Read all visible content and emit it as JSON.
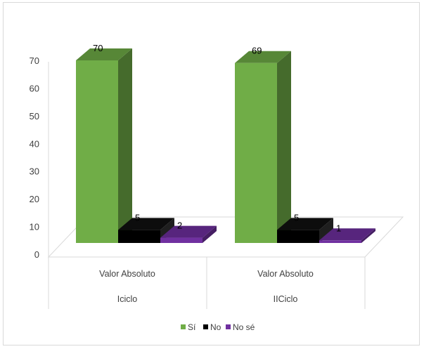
{
  "chart_data": {
    "type": "bar",
    "subtype": "3d-clustered-column",
    "groups": [
      {
        "label": "Valor Absoluto",
        "sublabel": "Iciclo"
      },
      {
        "label": "Valor Absoluto",
        "sublabel": "IICiclo"
      }
    ],
    "series": [
      {
        "name": "Sí",
        "values": [
          70,
          69
        ],
        "color": "#70ad47"
      },
      {
        "name": "No",
        "values": [
          5,
          5
        ],
        "color": "#000000"
      },
      {
        "name": "No sé",
        "values": [
          2,
          1
        ],
        "color": "#7030a0"
      }
    ],
    "y_ticks": [
      "0",
      "10",
      "20",
      "30",
      "40",
      "50",
      "60",
      "70"
    ],
    "ylim": [
      0,
      70
    ],
    "legend_position": "bottom",
    "gridlines": false
  }
}
